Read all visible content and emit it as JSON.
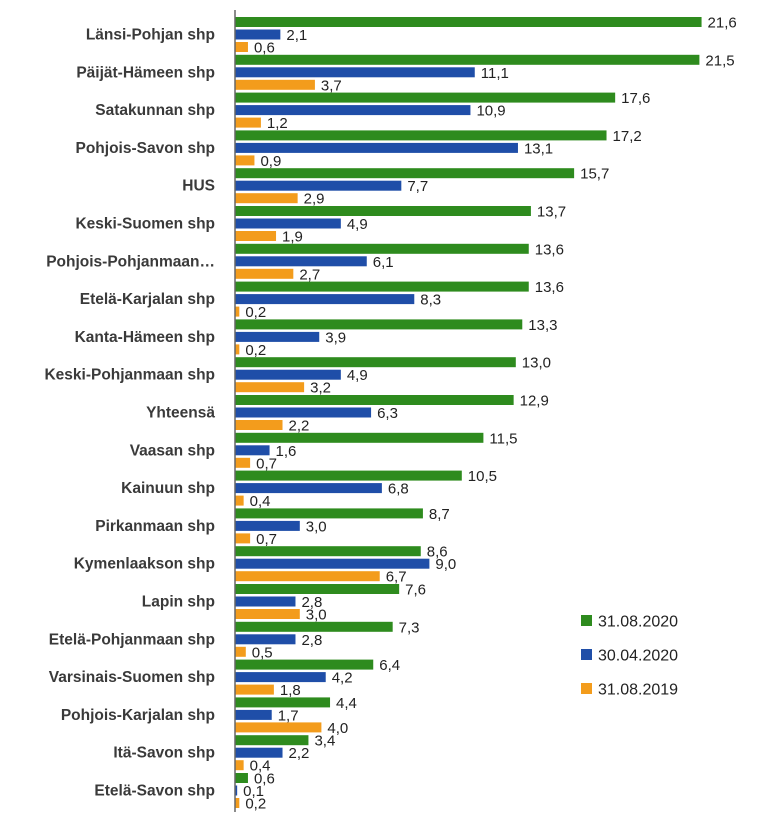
{
  "chart_data": {
    "type": "bar",
    "orientation": "horizontal",
    "title": "",
    "xlabel": "",
    "ylabel": "",
    "xlim": [
      0,
      22
    ],
    "grid": false,
    "legend_position": "right",
    "categories": [
      "Länsi-Pohjan shp",
      "Päijät-Hämeen shp",
      "Satakunnan shp",
      "Pohjois-Savon shp",
      "HUS",
      "Keski-Suomen shp",
      "Pohjois-Pohjanmaan…",
      "Etelä-Karjalan shp",
      "Kanta-Hämeen shp",
      "Keski-Pohjanmaan shp",
      "Yhteensä",
      "Vaasan shp",
      "Kainuun shp",
      "Pirkanmaan shp",
      "Kymenlaakson shp",
      "Lapin shp",
      "Etelä-Pohjanmaan shp",
      "Varsinais-Suomen shp",
      "Pohjois-Karjalan shp",
      "Itä-Savon shp",
      "Etelä-Savon shp"
    ],
    "series": [
      {
        "name": "31.08.2020",
        "color": "#2e8b1e",
        "values": [
          21.6,
          21.5,
          17.6,
          17.2,
          15.7,
          13.7,
          13.6,
          13.6,
          13.3,
          13.0,
          12.9,
          11.5,
          10.5,
          8.7,
          8.6,
          7.6,
          7.3,
          6.4,
          4.4,
          3.4,
          0.6
        ],
        "labels": [
          "21,6",
          "21,5",
          "17,6",
          "17,2",
          "15,7",
          "13,7",
          "13,6",
          "13,6",
          "13,3",
          "13,0",
          "12,9",
          "11,5",
          "10,5",
          "8,7",
          "8,6",
          "7,6",
          "7,3",
          "6,4",
          "4,4",
          "3,4",
          "0,6"
        ]
      },
      {
        "name": "30.04.2020",
        "color": "#1f4ea8",
        "values": [
          2.1,
          11.1,
          10.9,
          13.1,
          7.7,
          4.9,
          6.1,
          8.3,
          3.9,
          4.9,
          6.3,
          1.6,
          6.8,
          3.0,
          9.0,
          2.8,
          2.8,
          4.2,
          1.7,
          2.2,
          0.1
        ],
        "labels": [
          "2,1",
          "11,1",
          "10,9",
          "13,1",
          "7,7",
          "4,9",
          "6,1",
          "8,3",
          "3,9",
          "4,9",
          "6,3",
          "1,6",
          "6,8",
          "3,0",
          "9,0",
          "2,8",
          "2,8",
          "4,2",
          "1,7",
          "2,2",
          "0,1"
        ]
      },
      {
        "name": "31.08.2019",
        "color": "#f39c1c",
        "values": [
          0.6,
          3.7,
          1.2,
          0.9,
          2.9,
          1.9,
          2.7,
          0.2,
          0.2,
          3.2,
          2.2,
          0.7,
          0.4,
          0.7,
          6.7,
          3.0,
          0.5,
          1.8,
          4.0,
          0.4,
          0.2
        ],
        "labels": [
          "0,6",
          "3,7",
          "1,2",
          "0,9",
          "2,9",
          "1,9",
          "2,7",
          "0,2",
          "0,2",
          "3,2",
          "2,2",
          "0,7",
          "0,4",
          "0,7",
          "6,7",
          "3,0",
          "0,5",
          "1,8",
          "4,0",
          "0,4",
          "0,2"
        ]
      }
    ]
  }
}
